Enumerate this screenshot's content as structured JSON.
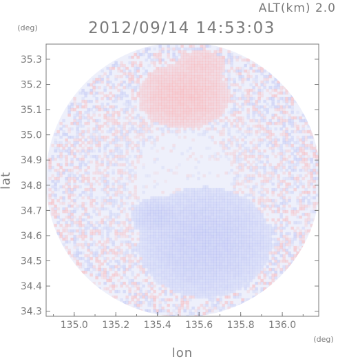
{
  "header": {
    "alt_label": "ALT(km) 2.0",
    "timestamp": "2012/09/14 14:53:03"
  },
  "chart_data": {
    "type": "heatmap",
    "title": "2012/09/14 14:53:03",
    "xlabel": "lon",
    "ylabel": "lat",
    "xunit": "(deg)",
    "yunit": "(deg)",
    "xlim": [
      134.865,
      136.175
    ],
    "ylim": [
      34.28,
      35.36
    ],
    "xticks": [
      "135.0",
      "135.2",
      "135.4",
      "135.6",
      "135.8",
      "136.0"
    ],
    "yticks": [
      "34.3",
      "34.4",
      "34.5",
      "34.6",
      "34.7",
      "34.8",
      "34.9",
      "35.0",
      "35.1",
      "35.2",
      "35.3"
    ],
    "domain": {
      "center_lon": 135.523,
      "center_lat": 34.823,
      "radius_lon": 0.66
    },
    "colors": {
      "positive": "#ff9a9a",
      "negative": "#a9b2f2",
      "neutral": "#eef0fb",
      "axis": "#7a7a7a",
      "background": "#ffffff"
    },
    "regions": [
      {
        "kind": "positive",
        "lon": 135.52,
        "lat": 35.16,
        "rlon": 0.22,
        "rlat": 0.13,
        "strength": 0.45
      },
      {
        "kind": "positive",
        "lon": 135.6,
        "lat": 35.28,
        "rlon": 0.12,
        "rlat": 0.06,
        "strength": 0.3
      },
      {
        "kind": "negative",
        "lon": 135.62,
        "lat": 34.58,
        "rlon": 0.32,
        "rlat": 0.22,
        "strength": 0.55
      },
      {
        "kind": "negative",
        "lon": 135.4,
        "lat": 34.68,
        "rlon": 0.13,
        "rlat": 0.08,
        "strength": 0.5
      },
      {
        "kind": "negative",
        "lon": 135.55,
        "lat": 34.53,
        "rlon": 0.08,
        "rlat": 0.11,
        "strength": 0.4
      }
    ]
  }
}
